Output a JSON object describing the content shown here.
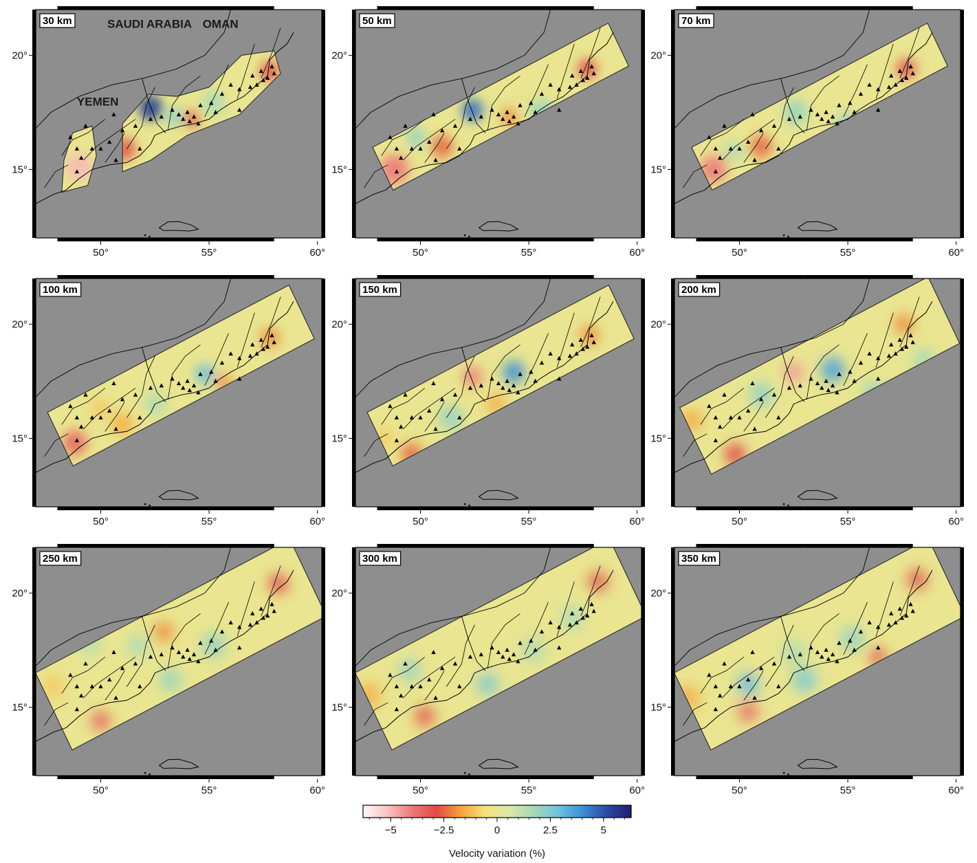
{
  "panels": [
    {
      "label": "30 km",
      "scale": 0.55,
      "extent": "narrow",
      "split": true,
      "anomalies": [
        [
          49.0,
          15.1,
          -5,
          0.55
        ],
        [
          51.1,
          15.9,
          -3,
          0.45
        ],
        [
          52.3,
          17.7,
          5.5,
          0.5
        ],
        [
          54.2,
          17.2,
          -2.5,
          0.35
        ],
        [
          53.4,
          17.3,
          2,
          0.4
        ],
        [
          57.8,
          19.3,
          -3,
          0.4
        ],
        [
          55.2,
          17.9,
          1.5,
          0.5
        ],
        [
          50.4,
          16.2,
          -1,
          0.4
        ]
      ]
    },
    {
      "label": "50 km",
      "scale": 0.62,
      "extent": "narrow",
      "split": false,
      "anomalies": [
        [
          48.8,
          15.0,
          -4,
          0.6
        ],
        [
          51.0,
          16.0,
          -2.5,
          0.45
        ],
        [
          52.4,
          17.6,
          4.5,
          0.45
        ],
        [
          54.1,
          17.3,
          -2,
          0.35
        ],
        [
          55.6,
          17.5,
          2,
          0.5
        ],
        [
          57.7,
          19.4,
          -3,
          0.4
        ],
        [
          49.8,
          16.4,
          2,
          0.4
        ]
      ]
    },
    {
      "label": "70 km",
      "scale": 0.72,
      "extent": "narrow",
      "split": false,
      "anomalies": [
        [
          48.8,
          15.0,
          -4,
          0.55
        ],
        [
          51.0,
          16.0,
          -2.5,
          0.45
        ],
        [
          52.6,
          17.5,
          2,
          0.5
        ],
        [
          55.0,
          17.0,
          2,
          0.45
        ],
        [
          57.7,
          19.4,
          -3,
          0.4
        ],
        [
          49.7,
          15.8,
          1.5,
          0.4
        ]
      ]
    },
    {
      "label": "100 km",
      "scale": 0.85,
      "extent": "mid",
      "split": false,
      "anomalies": [
        [
          48.8,
          14.8,
          -3.5,
          0.5
        ],
        [
          51.0,
          15.6,
          -1.5,
          0.45
        ],
        [
          54.8,
          17.8,
          3,
          0.4
        ],
        [
          55.7,
          17.4,
          -2,
          0.35
        ],
        [
          57.8,
          19.4,
          -2,
          0.4
        ],
        [
          52.5,
          16.5,
          1.5,
          0.45
        ],
        [
          50.0,
          16.3,
          -1,
          0.4
        ]
      ]
    },
    {
      "label": "150 km",
      "scale": 1.0,
      "extent": "mid",
      "split": false,
      "anomalies": [
        [
          52.4,
          17.7,
          -4,
          0.4
        ],
        [
          54.3,
          17.9,
          4,
          0.45
        ],
        [
          49.6,
          14.3,
          -2.5,
          0.45
        ],
        [
          51.4,
          15.9,
          2,
          0.5
        ],
        [
          57.8,
          19.5,
          -2,
          0.4
        ],
        [
          53.5,
          16.5,
          -1.5,
          0.4
        ],
        [
          56.5,
          16.4,
          1.5,
          0.5
        ],
        [
          48.3,
          15.0,
          -1,
          0.4
        ]
      ]
    },
    {
      "label": "200 km",
      "scale": 1.2,
      "extent": "wide",
      "split": false,
      "anomalies": [
        [
          52.5,
          17.9,
          -4.5,
          0.4
        ],
        [
          54.3,
          18.0,
          3.5,
          0.5
        ],
        [
          49.8,
          14.3,
          -3,
          0.45
        ],
        [
          47.8,
          15.8,
          -1.5,
          0.45
        ],
        [
          57.6,
          20.0,
          -2,
          0.4
        ],
        [
          56.2,
          17.0,
          2,
          0.45
        ],
        [
          51.0,
          16.9,
          2,
          0.5
        ],
        [
          58.5,
          18.4,
          1.5,
          0.5
        ]
      ]
    },
    {
      "label": "250 km",
      "scale": 1.35,
      "extent": "xwide",
      "split": false,
      "anomalies": [
        [
          50.0,
          14.4,
          -3.5,
          0.4
        ],
        [
          58.2,
          20.4,
          -3,
          0.4
        ],
        [
          52.9,
          18.3,
          -2,
          0.4
        ],
        [
          53.2,
          16.2,
          2,
          0.45
        ],
        [
          55.2,
          17.7,
          2,
          0.5
        ],
        [
          49.5,
          17.8,
          1.5,
          0.45
        ],
        [
          51.7,
          17.7,
          1.5,
          0.45
        ],
        [
          47.8,
          15.9,
          -1,
          0.45
        ]
      ]
    },
    {
      "label": "300 km",
      "scale": 1.5,
      "extent": "xwide",
      "split": false,
      "anomalies": [
        [
          50.2,
          14.6,
          -3,
          0.4
        ],
        [
          58.2,
          20.5,
          -3,
          0.4
        ],
        [
          53.1,
          16.0,
          2.5,
          0.45
        ],
        [
          49.5,
          16.6,
          2,
          0.45
        ],
        [
          55.2,
          17.5,
          1.5,
          0.5
        ],
        [
          47.6,
          15.5,
          -1.5,
          0.5
        ],
        [
          57.0,
          18.9,
          1.5,
          0.5
        ]
      ]
    },
    {
      "label": "350 km",
      "scale": 1.6,
      "extent": "xwide",
      "split": false,
      "anomalies": [
        [
          50.4,
          14.8,
          -3.5,
          0.4
        ],
        [
          58.2,
          20.6,
          -3,
          0.4
        ],
        [
          56.4,
          17.2,
          -3,
          0.35
        ],
        [
          50.4,
          16.0,
          3,
          0.45
        ],
        [
          53.0,
          16.2,
          2.5,
          0.5
        ],
        [
          55.2,
          18.0,
          2,
          0.5
        ],
        [
          47.6,
          15.4,
          -1.5,
          0.5
        ],
        [
          52.5,
          17.4,
          1.5,
          0.5
        ]
      ]
    }
  ],
  "countries": [
    "SAUDI ARABIA",
    "OMAN",
    "YEMEN"
  ],
  "axes": {
    "x_ticks": [
      50,
      55,
      60
    ],
    "y_ticks": [
      15,
      20
    ],
    "x_tick_labels": [
      "50°",
      "55°",
      "60°"
    ],
    "y_tick_labels": [
      "15°",
      "20°"
    ],
    "lon_range": [
      47,
      60.2
    ],
    "lat_range": [
      12,
      22
    ]
  },
  "colorbar": {
    "ticks": [
      -5,
      -2.5,
      0,
      2.5,
      5
    ],
    "tick_labels": [
      "−5",
      "−2.5",
      "0",
      "2.5",
      "5"
    ],
    "range": [
      -6.3,
      6.3
    ],
    "label": "Velocity variation (%)",
    "colors": [
      "#fff8f6",
      "#f8c4c2",
      "#ec7a78",
      "#e04a45",
      "#f4a23a",
      "#f5e27a",
      "#dde7a6",
      "#a6d9b5",
      "#6fc3e0",
      "#3a8fd6",
      "#2a4aa4",
      "#1e1e70"
    ]
  },
  "colors": {
    "land_mask": "#8e8e8e",
    "coast": "#000000",
    "station": "#000000"
  },
  "icons": {
    "station": "triangle"
  }
}
